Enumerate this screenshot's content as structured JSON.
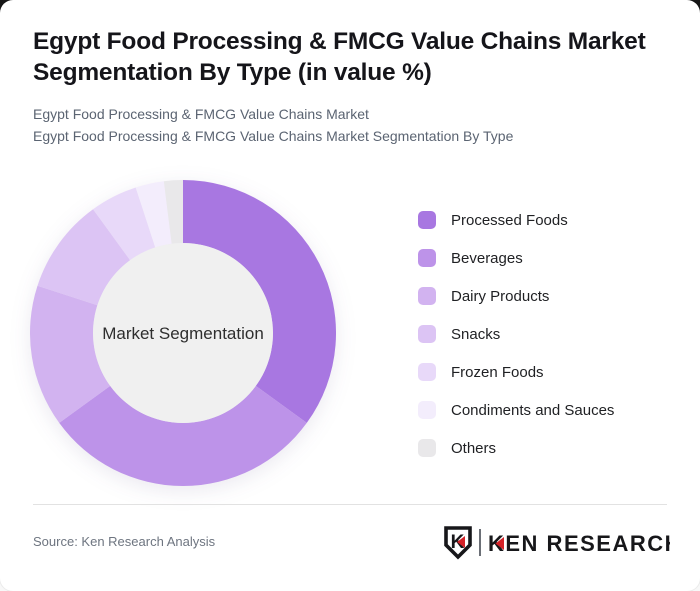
{
  "header": {
    "title": "Egypt Food Processing & FMCG Value Chains Market Segmentation By Type (in value %)",
    "subtitle_line1": "Egypt Food Processing & FMCG Value Chains Market",
    "subtitle_line2": "Egypt Food Processing & FMCG Value Chains Market Segmentation By Type"
  },
  "chart_data": {
    "type": "pie",
    "variant": "donut",
    "title": "Egypt Food Processing & FMCG Value Chains Market Segmentation By Type (in value %)",
    "center_label": "Market Segmentation",
    "units": "value %",
    "start_angle_deg": 0,
    "direction": "clockwise",
    "legend_position": "right",
    "inner_radius_ratio": 0.59,
    "center_circle_color": "#f0f0f0",
    "segments": [
      {
        "label": "Processed Foods",
        "value": 35,
        "color": "#a877e1"
      },
      {
        "label": "Beverages",
        "value": 30,
        "color": "#bd93e9"
      },
      {
        "label": "Dairy Products",
        "value": 15,
        "color": "#d2b3f0"
      },
      {
        "label": "Snacks",
        "value": 10,
        "color": "#dcc4f4"
      },
      {
        "label": "Frozen Foods",
        "value": 5,
        "color": "#e8d9f9"
      },
      {
        "label": "Condiments and Sauces",
        "value": 3,
        "color": "#f3edfc"
      },
      {
        "label": "Others",
        "value": 2,
        "color": "#e9e8ea"
      }
    ]
  },
  "footer": {
    "source_label": "Source: Ken Research Analysis",
    "logo": {
      "shield_letter": "K",
      "wordmark": "KEN RESEARCH",
      "accent_color": "#d42127",
      "text_color": "#17171a"
    }
  }
}
